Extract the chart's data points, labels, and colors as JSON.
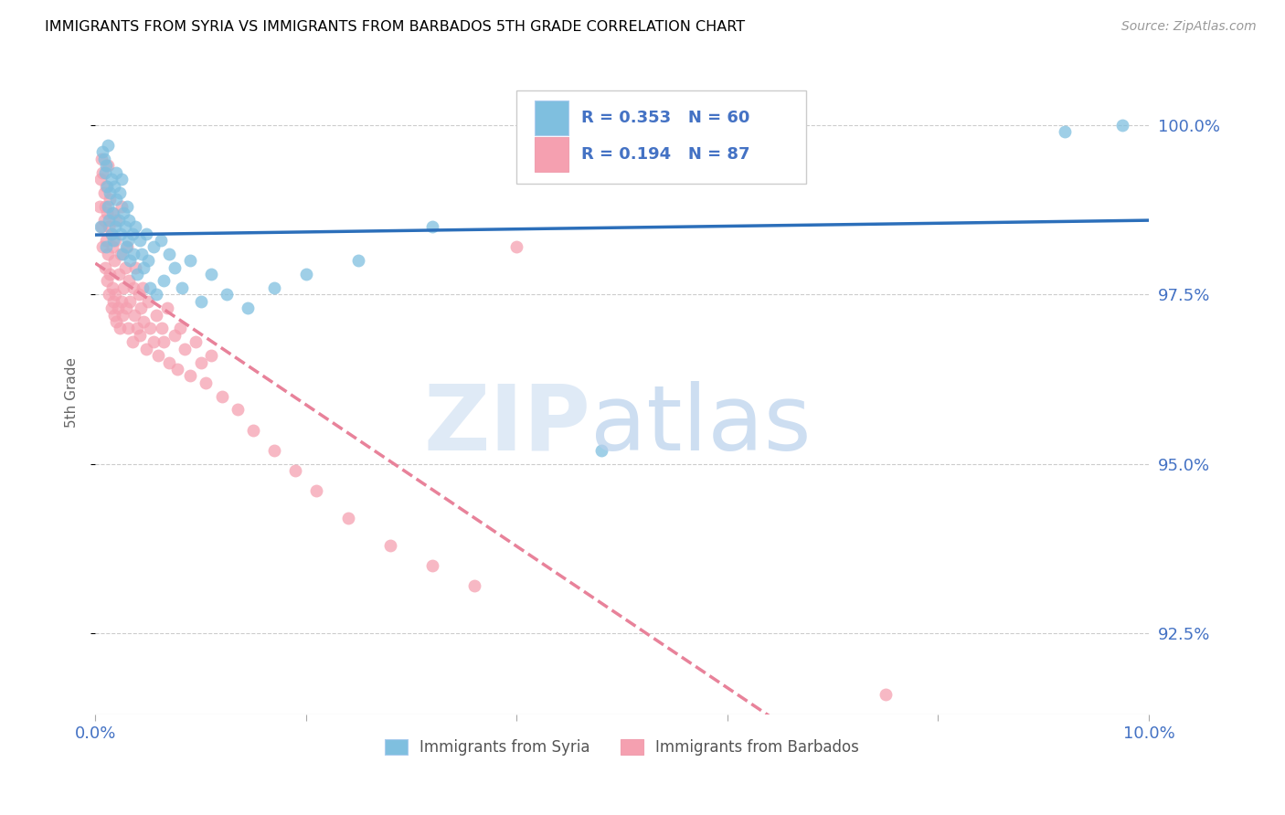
{
  "title": "IMMIGRANTS FROM SYRIA VS IMMIGRANTS FROM BARBADOS 5TH GRADE CORRELATION CHART",
  "source": "Source: ZipAtlas.com",
  "ylabel": "5th Grade",
  "yticks": [
    92.5,
    95.0,
    97.5,
    100.0
  ],
  "ytick_labels": [
    "92.5%",
    "95.0%",
    "97.5%",
    "100.0%"
  ],
  "xmin": 0.0,
  "xmax": 10.0,
  "ymin": 91.3,
  "ymax": 100.8,
  "syria_color": "#7fbfdf",
  "barbados_color": "#f5a0b0",
  "syria_R": 0.353,
  "syria_N": 60,
  "barbados_R": 0.194,
  "barbados_N": 87,
  "legend_label_syria": "Immigrants from Syria",
  "legend_label_barbados": "Immigrants from Barbados",
  "watermark_zip": "ZIP",
  "watermark_atlas": "atlas",
  "background_color": "#ffffff",
  "grid_color": "#cccccc",
  "axis_label_color": "#4472c4",
  "title_color": "#000000",
  "trendline_color_syria": "#2c6fba",
  "trendline_color_barbados": "#e8829a",
  "syria_scatter_x": [
    0.05,
    0.07,
    0.08,
    0.09,
    0.1,
    0.1,
    0.11,
    0.12,
    0.12,
    0.13,
    0.14,
    0.15,
    0.15,
    0.16,
    0.17,
    0.18,
    0.19,
    0.2,
    0.2,
    0.22,
    0.23,
    0.24,
    0.25,
    0.26,
    0.27,
    0.28,
    0.29,
    0.3,
    0.31,
    0.32,
    0.33,
    0.35,
    0.36,
    0.38,
    0.4,
    0.42,
    0.44,
    0.46,
    0.48,
    0.5,
    0.52,
    0.55,
    0.58,
    0.62,
    0.65,
    0.7,
    0.75,
    0.82,
    0.9,
    1.0,
    1.1,
    1.25,
    1.45,
    1.7,
    2.0,
    2.5,
    3.2,
    4.8,
    9.2,
    9.75
  ],
  "syria_scatter_y": [
    98.5,
    99.6,
    99.5,
    99.3,
    99.4,
    98.2,
    99.1,
    98.8,
    99.7,
    98.6,
    99.0,
    98.4,
    99.2,
    98.7,
    98.3,
    99.1,
    98.5,
    98.9,
    99.3,
    98.6,
    99.0,
    98.4,
    99.2,
    98.1,
    98.7,
    98.5,
    98.2,
    98.8,
    98.3,
    98.6,
    98.0,
    98.4,
    98.1,
    98.5,
    97.8,
    98.3,
    98.1,
    97.9,
    98.4,
    98.0,
    97.6,
    98.2,
    97.5,
    98.3,
    97.7,
    98.1,
    97.9,
    97.6,
    98.0,
    97.4,
    97.8,
    97.5,
    97.3,
    97.6,
    97.8,
    98.0,
    98.5,
    95.2,
    99.9,
    100.0
  ],
  "barbados_scatter_x": [
    0.04,
    0.05,
    0.06,
    0.06,
    0.07,
    0.07,
    0.08,
    0.08,
    0.09,
    0.09,
    0.1,
    0.1,
    0.11,
    0.11,
    0.12,
    0.12,
    0.13,
    0.13,
    0.14,
    0.14,
    0.15,
    0.15,
    0.16,
    0.16,
    0.17,
    0.17,
    0.18,
    0.18,
    0.19,
    0.19,
    0.2,
    0.2,
    0.21,
    0.22,
    0.23,
    0.24,
    0.25,
    0.25,
    0.26,
    0.27,
    0.28,
    0.29,
    0.3,
    0.31,
    0.32,
    0.33,
    0.35,
    0.36,
    0.37,
    0.38,
    0.4,
    0.41,
    0.42,
    0.43,
    0.45,
    0.46,
    0.48,
    0.5,
    0.52,
    0.55,
    0.58,
    0.6,
    0.63,
    0.65,
    0.68,
    0.7,
    0.75,
    0.78,
    0.8,
    0.85,
    0.9,
    0.95,
    1.0,
    1.05,
    1.1,
    1.2,
    1.35,
    1.5,
    1.7,
    1.9,
    2.1,
    2.4,
    2.8,
    3.2,
    3.6,
    4.0,
    7.5
  ],
  "barbados_scatter_y": [
    98.8,
    99.2,
    98.5,
    99.5,
    98.2,
    99.3,
    98.6,
    99.0,
    97.9,
    98.8,
    98.3,
    99.1,
    97.7,
    98.7,
    98.1,
    99.4,
    97.5,
    98.5,
    97.8,
    98.9,
    97.3,
    98.4,
    97.6,
    98.2,
    97.4,
    98.7,
    97.2,
    98.0,
    97.5,
    98.3,
    97.1,
    98.6,
    97.3,
    97.8,
    97.0,
    98.1,
    97.4,
    98.8,
    97.2,
    97.6,
    97.9,
    97.3,
    98.2,
    97.0,
    97.7,
    97.4,
    96.8,
    97.6,
    97.2,
    97.9,
    97.0,
    97.5,
    96.9,
    97.3,
    97.6,
    97.1,
    96.7,
    97.4,
    97.0,
    96.8,
    97.2,
    96.6,
    97.0,
    96.8,
    97.3,
    96.5,
    96.9,
    96.4,
    97.0,
    96.7,
    96.3,
    96.8,
    96.5,
    96.2,
    96.6,
    96.0,
    95.8,
    95.5,
    95.2,
    94.9,
    94.6,
    94.2,
    93.8,
    93.5,
    93.2,
    98.2,
    91.6
  ]
}
